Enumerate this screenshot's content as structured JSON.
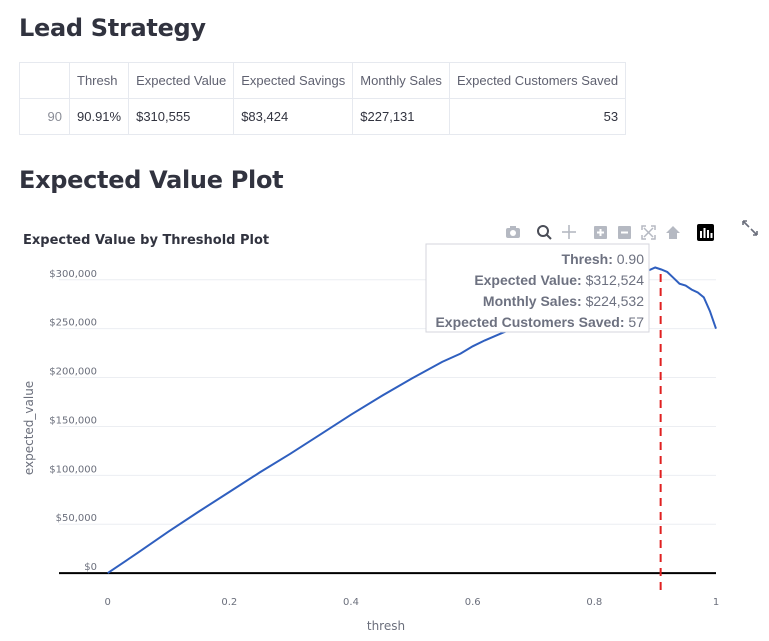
{
  "headings": {
    "lead_strategy": "Lead Strategy",
    "expected_value_plot": "Expected Value Plot"
  },
  "table": {
    "columns": [
      "",
      "Thresh",
      "Expected Value",
      "Expected Savings",
      "Monthly Sales",
      "Expected Customers Saved"
    ],
    "rows": [
      {
        "index": "90",
        "thresh": "90.91%",
        "expected_value": "$310,555",
        "expected_savings": "$83,424",
        "monthly_sales": "$227,131",
        "expected_customers_saved": "53"
      }
    ]
  },
  "toolbar": {
    "icons": [
      "camera-icon",
      "zoom-icon",
      "pan-icon",
      "zoom-in-icon",
      "zoom-out-icon",
      "autoscale-icon",
      "reset-axes-icon",
      "plotly-logo-icon"
    ],
    "fullscreen_icon": "expand-icon"
  },
  "hover": {
    "rows": [
      {
        "label": "Thresh:",
        "value": "0.90"
      },
      {
        "label": "Expected Value:",
        "value": "$312,524"
      },
      {
        "label": "Monthly Sales:",
        "value": "$224,532"
      },
      {
        "label": "Expected Customers Saved:",
        "value": "57"
      }
    ]
  },
  "chart_data": {
    "type": "line",
    "title": "Expected Value by Threshold Plot",
    "xlabel": "thresh",
    "ylabel": "expected_value",
    "xlim": [
      -0.08,
      1.0
    ],
    "ylim": [
      -5000,
      310000
    ],
    "x_ticks": [
      0,
      0.2,
      0.4,
      0.6,
      0.8,
      1
    ],
    "x_tick_labels": [
      "0",
      "0.2",
      "0.4",
      "0.6",
      "0.8",
      "1"
    ],
    "y_ticks": [
      0,
      50000,
      100000,
      150000,
      200000,
      250000,
      300000
    ],
    "y_tick_labels": [
      "$0",
      "$50,000",
      "$100,000",
      "$150,000",
      "$200,000",
      "$250,000",
      "$300,000"
    ],
    "grid": true,
    "line_color": "#2f5fbf",
    "vline": {
      "x": 0.909,
      "color": "#e02020",
      "style": "dashed"
    },
    "zero_line": true,
    "series": [
      {
        "x": [
          0,
          0.05,
          0.1,
          0.15,
          0.2,
          0.25,
          0.3,
          0.35,
          0.4,
          0.45,
          0.5,
          0.55,
          0.58,
          0.6,
          0.62,
          0.65,
          0.7,
          0.75,
          0.8,
          0.85,
          0.88,
          0.9,
          0.91,
          0.92,
          0.93,
          0.94,
          0.95,
          0.96,
          0.97,
          0.98,
          0.99,
          1.0
        ],
        "values": [
          0,
          21000,
          42500,
          63000,
          83000,
          103000,
          122000,
          142000,
          162000,
          181000,
          199000,
          216000,
          224500,
          232000,
          238000,
          246000,
          258000,
          272000,
          286000,
          300000,
          307000,
          312524,
          310555,
          308000,
          302000,
          296000,
          294000,
          290000,
          287000,
          282000,
          268000,
          250000
        ]
      }
    ]
  }
}
